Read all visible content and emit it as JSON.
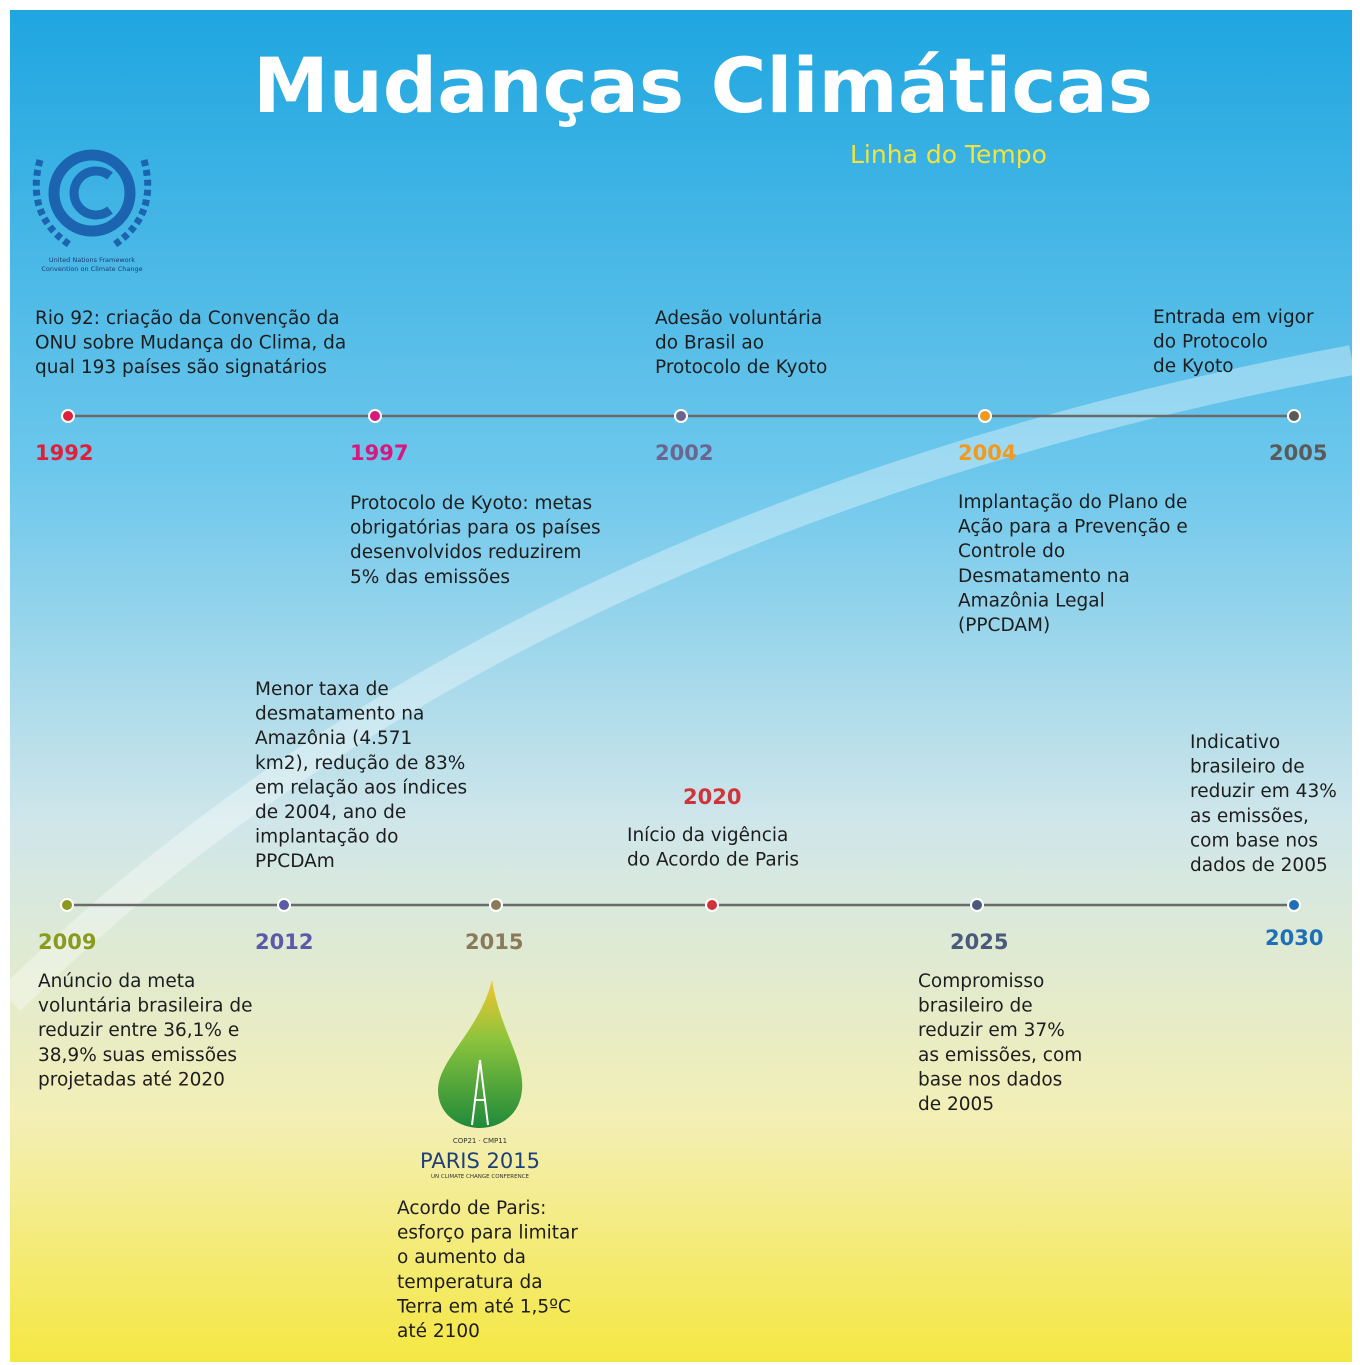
{
  "header": {
    "title": "Mudanças Climáticas",
    "subtitle": "Linha do Tempo"
  },
  "logos": {
    "unfccc": {
      "lines": [
        "United Nations Framework",
        "Convention on Climate Change"
      ]
    },
    "cop21": {
      "top": "COP21 · CMP11",
      "main": "PARIS 2015",
      "bottom": "UN CLIMATE CHANGE CONFERENCE"
    }
  },
  "timeline": [
    {
      "events": [
        {
          "year": "1992",
          "color": "#e0203a",
          "text": [
            "Rio 92: criação da Convenção da",
            "ONU sobre Mudança do Clima, da",
            "qual 193 países são signatários"
          ]
        },
        {
          "year": "1997",
          "color": "#d6187f",
          "text": [
            "Protocolo de Kyoto: metas",
            "obrigatórias para os países",
            "desenvolvidos reduzirem",
            "5% das emissões"
          ]
        },
        {
          "year": "2002",
          "color": "#6b6690",
          "text": [
            "Adesão voluntária",
            "do Brasil ao",
            "Protocolo de Kyoto"
          ]
        },
        {
          "year": "2004",
          "color": "#f29a1f",
          "text": [
            "Implantação do Plano de",
            "Ação para a Prevenção e",
            "Controle do",
            "Desmatamento na",
            "Amazônia Legal",
            "(PPCDAM)"
          ]
        },
        {
          "year": "2005",
          "color": "#5a5a5a",
          "text": [
            "Entrada em vigor",
            "do Protocolo",
            "de Kyoto"
          ]
        }
      ]
    },
    {
      "events": [
        {
          "year": "2009",
          "color": "#8a9a1e",
          "text": [
            "Anúncio da meta",
            "voluntária brasileira de",
            "reduzir entre 36,1% e",
            "38,9% suas emissões",
            "projetadas até 2020"
          ]
        },
        {
          "year": "2012",
          "color": "#5c5aa8",
          "text": [
            "Menor taxa de",
            "desmatamento na",
            "Amazônia (4.571",
            "km2), redução de 83%",
            "em relação aos índices",
            "de 2004, ano de",
            "implantação do",
            "PPCDAm"
          ]
        },
        {
          "year": "2015",
          "color": "#8a7a5a",
          "text": [
            "Acordo de Paris:",
            "esforço para limitar",
            "o aumento da",
            "temperatura da",
            "Terra em até 1,5ºC",
            "até 2100"
          ]
        },
        {
          "year": "2020",
          "color": "#d0343a",
          "text": [
            "Início da vigência",
            "do Acordo de Paris"
          ]
        },
        {
          "year": "2025",
          "color": "#4a5a7a",
          "text": [
            "Compromisso",
            "brasileiro de",
            "reduzir em 37%",
            "as emissões, com",
            "base nos dados",
            "de 2005"
          ]
        },
        {
          "year": "2030",
          "color": "#1f6fb8",
          "text": [
            "Indicativo",
            "brasileiro de",
            "reduzir em 43%",
            "as emissões,",
            "com base nos",
            "dados de 2005"
          ]
        }
      ]
    }
  ]
}
